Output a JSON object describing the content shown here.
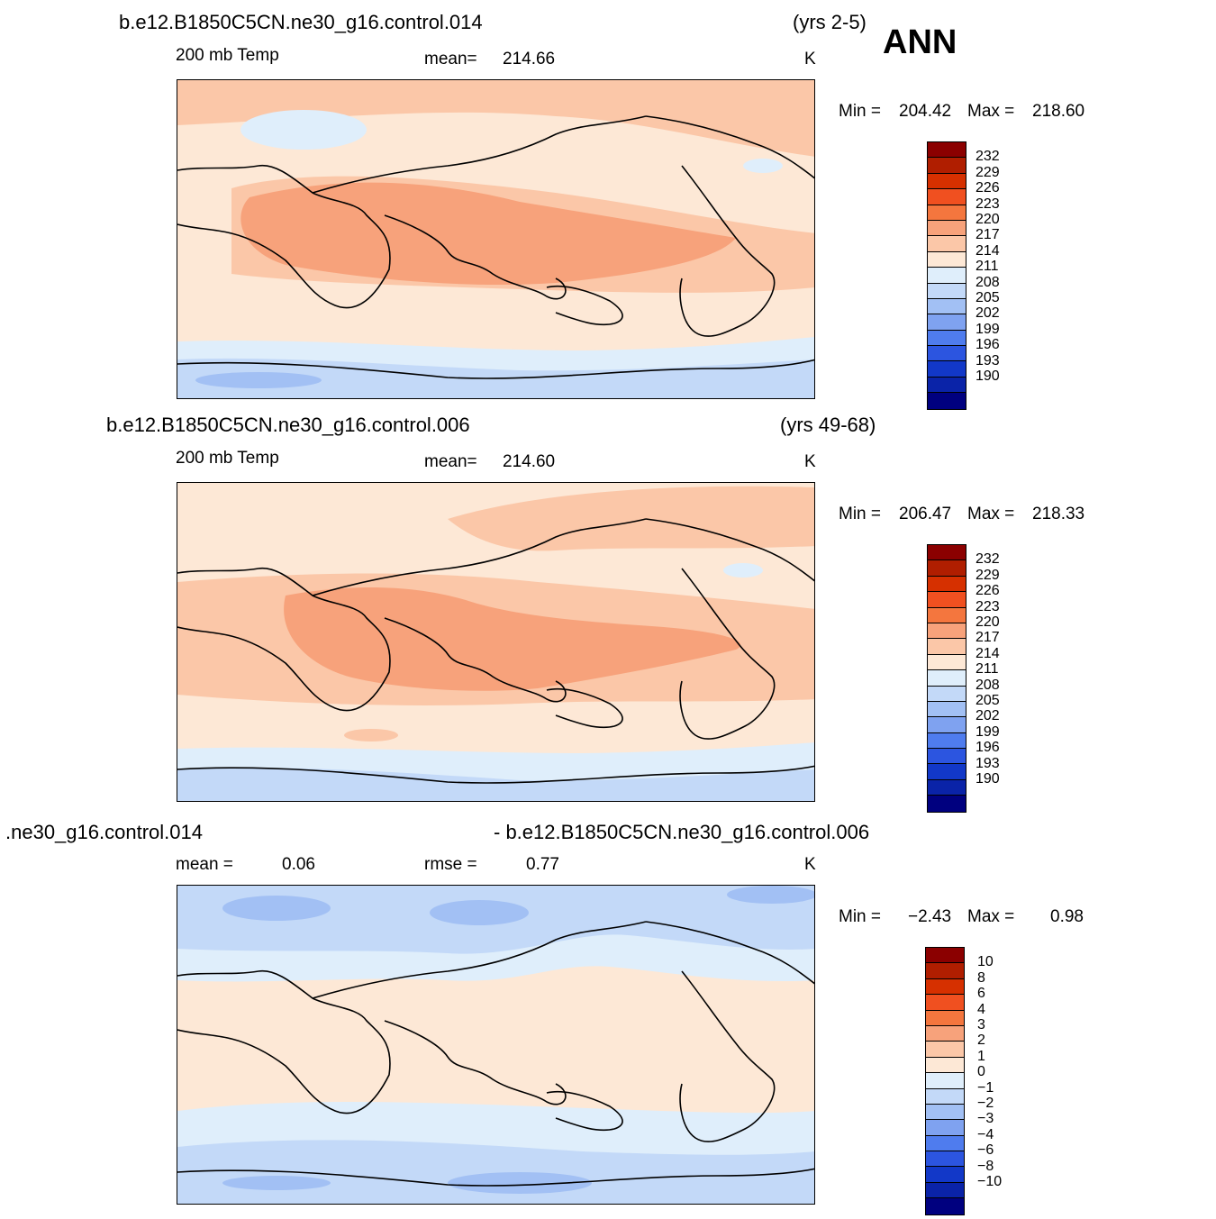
{
  "season": "ANN",
  "panels": [
    {
      "case": "b.e12.B1850C5CN.ne30_g16.control.014",
      "years": "(yrs 2-5)",
      "variable": "200 mb Temp",
      "stat_label": "mean=",
      "stat_value": "214.66",
      "units": "K",
      "min_label": "Min =",
      "min_value": "204.42",
      "max_label": "Max =",
      "max_value": "218.60",
      "levels": [
        "232",
        "229",
        "226",
        "223",
        "220",
        "217",
        "214",
        "211",
        "208",
        "205",
        "202",
        "199",
        "196",
        "193",
        "190"
      ]
    },
    {
      "case": "b.e12.B1850C5CN.ne30_g16.control.006",
      "years": "(yrs 49-68)",
      "variable": "200 mb Temp",
      "stat_label": "mean=",
      "stat_value": "214.60",
      "units": "K",
      "min_label": "Min =",
      "min_value": "206.47",
      "max_label": "Max =",
      "max_value": "218.33",
      "levels": [
        "232",
        "229",
        "226",
        "223",
        "220",
        "217",
        "214",
        "211",
        "208",
        "205",
        "202",
        "199",
        "196",
        "193",
        "190"
      ]
    },
    {
      "case_left": ".ne30_g16.control.014",
      "case_right": "- b.e12.B1850C5CN.ne30_g16.control.006",
      "stat1_label": "mean =",
      "stat1_value": "0.06",
      "stat2_label": "rmse =",
      "stat2_value": "0.77",
      "units": "K",
      "min_label": "Min =",
      "min_value": "−2.43",
      "max_label": "Max =",
      "max_value": "0.98",
      "levels": [
        "10",
        "8",
        "6",
        "4",
        "3",
        "2",
        "1",
        "0",
        "−1",
        "−2",
        "−3",
        "−4",
        "−6",
        "−8",
        "−10"
      ]
    }
  ],
  "colors": {
    "scale": [
      "#8b0000",
      "#b01e00",
      "#d63000",
      "#f05020",
      "#f4763e",
      "#f7a27b",
      "#fbc7a8",
      "#fde8d6",
      "#dfeefb",
      "#c3d9f8",
      "#a2c0f4",
      "#7fa2f0",
      "#4f7cee",
      "#2c55e0",
      "#1238c8",
      "#0a23a8",
      "#00007f"
    ],
    "coast": "#000000"
  }
}
